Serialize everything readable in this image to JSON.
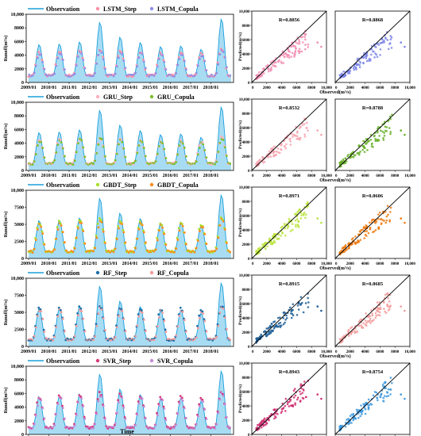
{
  "figure": {
    "x_axis_label": "Time",
    "scatter_xlabel": "Observed(m³/s)",
    "scatter_ylabel": "Predicted(m³/s)",
    "ts_ylabel": "Runoff(m³/s)"
  },
  "chart_data": [
    {
      "id": "lstm",
      "type": "area",
      "legend": [
        "Observation",
        "LSTM_Step",
        "LSTM_Copula"
      ],
      "colors": {
        "obs_fill": "#a8dcf3",
        "obs_line": "#1aa0dc",
        "step": "#ff8fa3",
        "copula": "#8f8fe8"
      },
      "yticks": [
        "0",
        "2000",
        "4000",
        "6000",
        "8000",
        "10,000"
      ],
      "ylim": [
        0,
        10000
      ],
      "xticks": [
        "2009/01",
        "2010/01",
        "2011/01",
        "2012/01",
        "2013/01",
        "2014/01",
        "2015/01",
        "2016/01",
        "2017/01",
        "2018/01"
      ],
      "peaks": [
        5600,
        5700,
        6000,
        8900,
        6700,
        5900,
        5300,
        5400,
        4900,
        9400
      ],
      "step_peaks": [
        4400,
        4500,
        4700,
        4900,
        4600,
        4500,
        4300,
        4400,
        4200,
        5000
      ],
      "copula_peaks": [
        4200,
        4300,
        4500,
        4700,
        4400,
        4300,
        4100,
        4200,
        4000,
        4800
      ],
      "base": 1000
    },
    {
      "id": "lstm_sc",
      "type": "scatter",
      "panels": [
        {
          "r": "R=0.8856",
          "color": "#f28cb1"
        },
        {
          "r": "R=0.8868",
          "color": "#7c86e8"
        }
      ],
      "ticks": [
        "0",
        "2000",
        "4000",
        "6000",
        "8000",
        "10,000"
      ],
      "xlim": [
        0,
        10000
      ],
      "ylim": [
        0,
        10000
      ],
      "slope": 0.78
    },
    {
      "id": "gru",
      "type": "area",
      "legend": [
        "Observation",
        "GRU_Step",
        "GRU_Copula"
      ],
      "colors": {
        "obs_fill": "#a8dcf3",
        "obs_line": "#1aa0dc",
        "step": "#ffb0bb",
        "copula": "#7cbf2a"
      },
      "yticks": [
        "0",
        "2000",
        "4000",
        "6000",
        "8000",
        "10,000"
      ],
      "ylim": [
        0,
        10000
      ],
      "xticks": [
        "2009/01",
        "2010/01",
        "2011/01",
        "2012/01",
        "2013/01",
        "2014/01",
        "2015/01",
        "2016/01",
        "2017/01",
        "2018/01"
      ],
      "peaks": [
        5600,
        5700,
        6000,
        8900,
        6700,
        5900,
        5300,
        5400,
        4900,
        9400
      ],
      "step_peaks": [
        4500,
        4600,
        4700,
        4800,
        4600,
        4500,
        4300,
        4400,
        4200,
        4900
      ],
      "copula_peaks": [
        4300,
        4400,
        4600,
        4700,
        4500,
        4400,
        4200,
        4300,
        4100,
        4800
      ],
      "base": 1000
    },
    {
      "id": "gru_sc",
      "type": "scatter",
      "panels": [
        {
          "r": "R=0.8532",
          "color": "#f6a3ae"
        },
        {
          "r": "R=0.8788",
          "color": "#68b02a"
        }
      ],
      "ticks": [
        "0",
        "2000",
        "4000",
        "6000",
        "8000",
        "10,000"
      ],
      "xlim": [
        0,
        10000
      ],
      "ylim": [
        0,
        10000
      ],
      "slope": 0.8
    },
    {
      "id": "gbdt",
      "type": "area",
      "legend": [
        "Observation",
        "GBDT_Step",
        "GBDT_Copula"
      ],
      "colors": {
        "obs_fill": "#a8dcf3",
        "obs_line": "#1aa0dc",
        "step": "#a9df2a",
        "copula": "#ff8a1a"
      },
      "yticks": [
        "0",
        "2500",
        "5000",
        "7500",
        "10,000"
      ],
      "ylim": [
        0,
        10000
      ],
      "xticks": [
        "2009/01",
        "2010/01",
        "2011/01",
        "2012/01",
        "2013/01",
        "2014/01",
        "2015/01",
        "2016/01",
        "2017/01",
        "2018/01"
      ],
      "peaks": [
        5600,
        5700,
        6000,
        8900,
        6700,
        5900,
        5300,
        5400,
        4900,
        9400
      ],
      "step_peaks": [
        5300,
        5500,
        5700,
        6000,
        5600,
        5400,
        5200,
        5300,
        5000,
        6000
      ],
      "copula_peaks": [
        5000,
        5200,
        5400,
        5600,
        5300,
        5100,
        4900,
        5000,
        4700,
        5700
      ],
      "base": 1000
    },
    {
      "id": "gbdt_sc",
      "type": "scatter",
      "panels": [
        {
          "r": "R=0.8971",
          "color": "#b9e43a"
        },
        {
          "r": "R=0.8606",
          "color": "#f07a10"
        }
      ],
      "ticks": [
        "0",
        "2000",
        "4000",
        "6000",
        "8000",
        "10,000"
      ],
      "xlim": [
        0,
        10000
      ],
      "ylim": [
        0,
        10000
      ],
      "slope": 0.85
    },
    {
      "id": "rf",
      "type": "area",
      "legend": [
        "Observation",
        "RF_Step",
        "RF_Copula"
      ],
      "colors": {
        "obs_fill": "#a8dcf3",
        "obs_line": "#1aa0dc",
        "step": "#1f6fa8",
        "copula": "#f49a9a"
      },
      "yticks": [
        "0",
        "2500",
        "5000",
        "7500",
        "10,000"
      ],
      "ylim": [
        0,
        10000
      ],
      "xticks": [
        "2009/01",
        "2010/01",
        "2011/01",
        "2012/01",
        "2013/01",
        "2014/01",
        "2015/01",
        "2016/01",
        "2017/01",
        "2018/01"
      ],
      "peaks": [
        5600,
        5700,
        6000,
        8900,
        6700,
        5900,
        5300,
        5400,
        4900,
        9400
      ],
      "step_peaks": [
        5600,
        5700,
        5800,
        5900,
        5700,
        5600,
        5500,
        5600,
        5300,
        6000
      ],
      "copula_peaks": [
        5300,
        5400,
        5500,
        5700,
        5400,
        5300,
        5200,
        5300,
        5000,
        5800
      ],
      "base": 1000
    },
    {
      "id": "rf_sc",
      "type": "scatter",
      "panels": [
        {
          "r": "R=0.8915",
          "color": "#1f5f96"
        },
        {
          "r": "R=0.8685",
          "color": "#f39a9a"
        }
      ],
      "ticks": [
        "0",
        "2000",
        "4000",
        "6000",
        "8000",
        "10,000"
      ],
      "xlim": [
        0,
        10000
      ],
      "ylim": [
        0,
        10000
      ],
      "slope": 0.84
    },
    {
      "id": "svr",
      "type": "area",
      "legend": [
        "Observation",
        "SVR_Step",
        "SVR_Copula"
      ],
      "colors": {
        "obs_fill": "#a8dcf3",
        "obs_line": "#1aa0dc",
        "step": "#d63a78",
        "copula": "#c48ad6"
      },
      "yticks": [
        "0",
        "2000",
        "4000",
        "6000",
        "8000",
        "10,000"
      ],
      "ylim": [
        0,
        10000
      ],
      "xticks": [
        "2009/01",
        "2010/01",
        "2011/01",
        "2012/01",
        "2013/01",
        "2014/01",
        "2015/01",
        "2016/01",
        "2017/01",
        "2018/01"
      ],
      "peaks": [
        5600,
        5700,
        6000,
        8900,
        6700,
        5900,
        5300,
        5400,
        4900,
        9400
      ],
      "step_peaks": [
        5500,
        5700,
        5800,
        6200,
        5900,
        5700,
        5500,
        5600,
        5300,
        6300
      ],
      "copula_peaks": [
        5200,
        5400,
        5500,
        5800,
        5600,
        5400,
        5200,
        5300,
        5000,
        6000
      ],
      "base": 1000
    },
    {
      "id": "svr_sc",
      "type": "scatter",
      "panels": [
        {
          "r": "R=0.8943",
          "color": "#cf2f72"
        },
        {
          "r": "R=0.8754",
          "color": "#3f9be0"
        }
      ],
      "ticks": [
        "0",
        "2000",
        "4000",
        "6000",
        "8000",
        "10,000"
      ],
      "xlim": [
        0,
        10000
      ],
      "ylim": [
        0,
        10000
      ],
      "slope": 0.86
    }
  ]
}
